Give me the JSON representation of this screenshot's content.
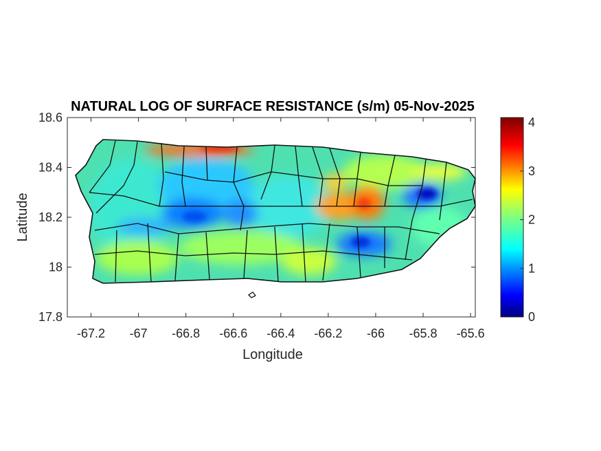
{
  "title": "NATURAL LOG OF SURFACE RESISTANCE (s/m) 05-Nov-2025",
  "map": {
    "xlabel": "Longitude",
    "ylabel": "Latitude",
    "xlim": [
      -67.3,
      -65.58
    ],
    "ylim": [
      17.8,
      18.6
    ],
    "xticks": [
      "-67.2",
      "-67",
      "-66.8",
      "-66.6",
      "-66.4",
      "-66.2",
      "-66",
      "-65.8",
      "-65.6"
    ],
    "xtick_values": [
      -67.2,
      -67.0,
      -66.8,
      -66.6,
      -66.4,
      -66.2,
      -66.0,
      -65.8,
      -65.6
    ],
    "yticks": [
      "18.6",
      "18.4",
      "18.2",
      "18",
      "17.8"
    ],
    "ytick_values": [
      18.6,
      18.4,
      18.2,
      18.0,
      17.8
    ]
  },
  "colorbar": {
    "colormap": "jet",
    "range": [
      0,
      4.1
    ],
    "ticks": [
      "4",
      "3",
      "2",
      "1",
      "0"
    ],
    "tick_values": [
      4,
      3,
      2,
      1,
      0
    ]
  },
  "field_features": {
    "background_value": 1.9,
    "high_zones": [
      "north coast near -66.75",
      "east-central near -66.22 to -66.05, 18.26",
      "central near -66.16, 18.32"
    ],
    "low_zones": [
      "west-central -66.8, 18.18",
      "central -66.6, 18.22",
      "southeast -66.05, 18.1",
      "east -65.8, 18.28"
    ]
  }
}
